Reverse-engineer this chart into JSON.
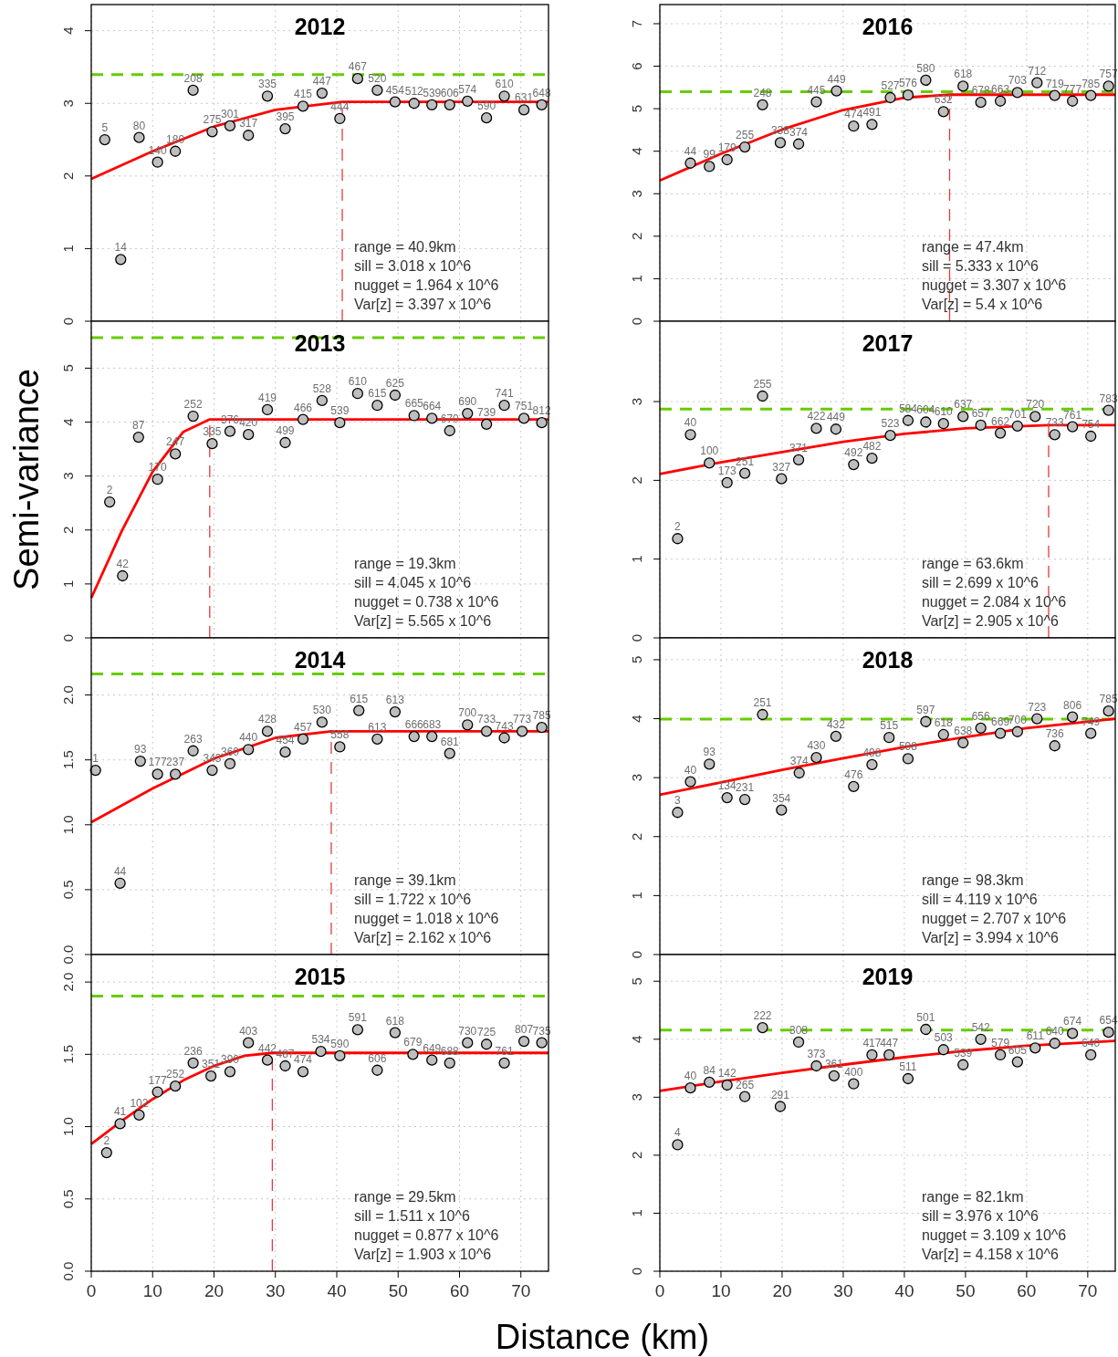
{
  "chart_data": [
    {
      "type": "scatter",
      "title": "2012",
      "xlim": [
        0,
        74.5
      ],
      "xticks": [
        0,
        10,
        20,
        30,
        40,
        50,
        60,
        70
      ],
      "ylim": [
        0,
        4.36
      ],
      "yticks": [
        0,
        1,
        2,
        3,
        4
      ],
      "grid": true,
      "tick_labels": "y",
      "series": [
        {
          "marker": "circle",
          "color": "#bebebe",
          "x": [
            2.2,
            4.8,
            7.8,
            10.8,
            13.7,
            16.6,
            19.7,
            22.6,
            25.6,
            28.7,
            31.6,
            34.5,
            37.6,
            40.5,
            43.4,
            46.6,
            49.5,
            52.6,
            55.5,
            58.4,
            61.3,
            64.4,
            67.3,
            70.5,
            73.4
          ],
          "values": [
            2.5,
            0.85,
            2.53,
            2.19,
            2.34,
            3.18,
            2.61,
            2.69,
            2.56,
            3.1,
            2.65,
            2.96,
            3.14,
            2.79,
            3.34,
            3.18,
            3.02,
            3.0,
            2.98,
            2.98,
            3.03,
            2.8,
            3.1,
            2.91,
            2.98
          ]
        },
        {
          "type": "line",
          "color": "#ff0000",
          "x": [
            0,
            10,
            20,
            30,
            40.9,
            74.5
          ],
          "values": [
            1.96,
            2.34,
            2.68,
            2.91,
            3.02,
            3.02
          ]
        }
      ],
      "ref_lines": [
        {
          "axis": "y",
          "value": 3.397,
          "color": "#66cc00",
          "line_style": "dashed"
        },
        {
          "axis": "x",
          "value": 40.9,
          "color": "#e8383d",
          "line_style": "dashed"
        }
      ],
      "annotations": [
        "range = 40.9km",
        "sill = 3.018 x 10^6",
        "nugget = 1.964 x 10^6",
        "Var[z] = 3.397 x 10^6",
        {
          "text": "5",
          "x": 2.2,
          "y": 2.5
        },
        {
          "text": "14",
          "x": 4.8,
          "y": 0.85
        },
        {
          "text": "80",
          "x": 7.8,
          "y": 2.53
        },
        {
          "text": "140",
          "x": 10.8,
          "y": 2.19
        },
        {
          "text": "180",
          "x": 13.7,
          "y": 2.34
        },
        {
          "text": "208",
          "x": 16.6,
          "y": 3.18
        },
        {
          "text": "275",
          "x": 19.7,
          "y": 2.61
        },
        {
          "text": "301",
          "x": 22.6,
          "y": 2.69
        },
        {
          "text": "317",
          "x": 25.6,
          "y": 2.56
        },
        {
          "text": "335",
          "x": 28.7,
          "y": 3.1
        },
        {
          "text": "395",
          "x": 31.6,
          "y": 2.65
        },
        {
          "text": "415",
          "x": 34.5,
          "y": 2.96
        },
        {
          "text": "447",
          "x": 37.6,
          "y": 3.14
        },
        {
          "text": "444",
          "x": 40.5,
          "y": 2.79
        },
        {
          "text": "467",
          "x": 43.4,
          "y": 3.34
        },
        {
          "text": "520",
          "x": 46.6,
          "y": 3.18
        },
        {
          "text": "454",
          "x": 49.5,
          "y": 3.02
        },
        {
          "text": "512",
          "x": 52.6,
          "y": 3.0
        },
        {
          "text": "539",
          "x": 55.5,
          "y": 2.98
        },
        {
          "text": "606",
          "x": 58.4,
          "y": 2.98
        },
        {
          "text": "574",
          "x": 61.3,
          "y": 3.03
        },
        {
          "text": "590",
          "x": 64.4,
          "y": 2.8
        },
        {
          "text": "610",
          "x": 67.3,
          "y": 3.1
        },
        {
          "text": "631",
          "x": 70.5,
          "y": 2.91
        },
        {
          "text": "648",
          "x": 73.4,
          "y": 2.98
        }
      ]
    },
    {
      "type": "scatter",
      "title": "2013",
      "ylabel": "Semi-variance",
      "xlim": [
        0,
        74.5
      ],
      "xticks": [
        0,
        10,
        20,
        30,
        40,
        50,
        60,
        70
      ],
      "ylim": [
        0,
        5.87
      ],
      "yticks": [
        0,
        1,
        2,
        3,
        4,
        5
      ],
      "grid": true,
      "tick_labels": "y",
      "series": [
        {
          "marker": "circle",
          "color": "#bebebe",
          "x": [
            3.0,
            5.1,
            7.7,
            10.8,
            13.7,
            16.6,
            19.7,
            22.6,
            25.6,
            28.7,
            31.6,
            34.5,
            37.6,
            40.5,
            43.4,
            46.6,
            49.5,
            52.6,
            55.5,
            58.4,
            61.3,
            64.4,
            67.3,
            70.5,
            73.4
          ],
          "values": [
            2.52,
            1.15,
            3.72,
            2.94,
            3.41,
            4.11,
            3.6,
            3.83,
            3.77,
            4.23,
            3.62,
            4.05,
            4.4,
            3.99,
            4.53,
            4.31,
            4.5,
            4.12,
            4.07,
            3.84,
            4.16,
            3.96,
            4.31,
            4.07,
            3.99
          ]
        },
        {
          "type": "line",
          "color": "#ff0000",
          "x": [
            0,
            5,
            10,
            15,
            19.3,
            74.5
          ],
          "values": [
            0.74,
            1.99,
            3.08,
            3.82,
            4.05,
            4.05
          ]
        }
      ],
      "ref_lines": [
        {
          "axis": "y",
          "value": 5.565,
          "color": "#66cc00",
          "line_style": "dashed"
        },
        {
          "axis": "x",
          "value": 19.3,
          "color": "#e8383d",
          "line_style": "dashed"
        }
      ],
      "annotations": [
        "range = 19.3km",
        "sill = 4.045 x 10^6",
        "nugget = 0.738 x 10^6",
        "Var[z] = 5.565 x 10^6",
        {
          "text": "2",
          "x": 3.0,
          "y": 2.52
        },
        {
          "text": "42",
          "x": 5.1,
          "y": 1.15
        },
        {
          "text": "87",
          "x": 7.7,
          "y": 3.72
        },
        {
          "text": "170",
          "x": 10.8,
          "y": 2.94
        },
        {
          "text": "247",
          "x": 13.7,
          "y": 3.41
        },
        {
          "text": "252",
          "x": 16.6,
          "y": 4.11
        },
        {
          "text": "335",
          "x": 19.7,
          "y": 3.6
        },
        {
          "text": "376",
          "x": 22.6,
          "y": 3.83
        },
        {
          "text": "420",
          "x": 25.6,
          "y": 3.77
        },
        {
          "text": "419",
          "x": 28.7,
          "y": 4.23
        },
        {
          "text": "499",
          "x": 31.6,
          "y": 3.62
        },
        {
          "text": "466",
          "x": 34.5,
          "y": 4.05
        },
        {
          "text": "528",
          "x": 37.6,
          "y": 4.4
        },
        {
          "text": "539",
          "x": 40.5,
          "y": 3.99
        },
        {
          "text": "610",
          "x": 43.4,
          "y": 4.53
        },
        {
          "text": "615",
          "x": 46.6,
          "y": 4.31
        },
        {
          "text": "625",
          "x": 49.5,
          "y": 4.5
        },
        {
          "text": "665",
          "x": 52.6,
          "y": 4.12
        },
        {
          "text": "664",
          "x": 55.5,
          "y": 4.07
        },
        {
          "text": "670",
          "x": 58.4,
          "y": 3.84
        },
        {
          "text": "690",
          "x": 61.3,
          "y": 4.16
        },
        {
          "text": "739",
          "x": 64.4,
          "y": 3.96
        },
        {
          "text": "741",
          "x": 67.3,
          "y": 4.31
        },
        {
          "text": "751",
          "x": 70.5,
          "y": 4.07
        },
        {
          "text": "812",
          "x": 73.4,
          "y": 3.99
        }
      ]
    },
    {
      "type": "scatter",
      "title": "2014",
      "xlim": [
        0,
        74.5
      ],
      "xticks": [
        0,
        10,
        20,
        30,
        40,
        50,
        60,
        70
      ],
      "ylim": [
        0,
        2.44
      ],
      "yticks": [
        {
          "value": 0,
          "label": "0.0"
        },
        {
          "value": 0.5,
          "label": "0.5"
        },
        {
          "value": 1,
          "label": "1.0"
        },
        {
          "value": 1.5,
          "label": "1.5"
        },
        {
          "value": 2,
          "label": "2.0"
        }
      ],
      "grid": true,
      "tick_labels": "y",
      "series": [
        {
          "marker": "circle",
          "color": "#bebebe",
          "x": [
            0.7,
            4.7,
            8.0,
            10.8,
            13.7,
            16.6,
            19.7,
            22.6,
            25.6,
            28.7,
            31.6,
            34.5,
            37.6,
            40.5,
            43.6,
            46.6,
            49.5,
            52.6,
            55.5,
            58.4,
            61.3,
            64.4,
            67.3,
            70.2,
            73.4
          ],
          "values": [
            1.42,
            0.55,
            1.49,
            1.39,
            1.39,
            1.57,
            1.42,
            1.47,
            1.58,
            1.72,
            1.56,
            1.66,
            1.79,
            1.6,
            1.88,
            1.66,
            1.87,
            1.68,
            1.68,
            1.55,
            1.77,
            1.72,
            1.67,
            1.72,
            1.75
          ]
        },
        {
          "type": "line",
          "color": "#ff0000",
          "x": [
            0,
            10,
            20,
            30,
            39.1,
            74.5
          ],
          "values": [
            1.02,
            1.28,
            1.51,
            1.67,
            1.72,
            1.72
          ]
        }
      ],
      "ref_lines": [
        {
          "axis": "y",
          "value": 2.162,
          "color": "#66cc00",
          "line_style": "dashed"
        },
        {
          "axis": "x",
          "value": 39.1,
          "color": "#e8383d",
          "line_style": "dashed"
        }
      ],
      "annotations": [
        "range = 39.1km",
        "sill = 1.722 x 10^6",
        "nugget = 1.018 x 10^6",
        "Var[z] = 2.162 x 10^6",
        {
          "text": "1",
          "x": 0.7,
          "y": 1.42
        },
        {
          "text": "44",
          "x": 4.7,
          "y": 0.55
        },
        {
          "text": "93",
          "x": 8.0,
          "y": 1.49
        },
        {
          "text": "177",
          "x": 10.8,
          "y": 1.39
        },
        {
          "text": "237",
          "x": 13.7,
          "y": 1.39
        },
        {
          "text": "263",
          "x": 16.6,
          "y": 1.57
        },
        {
          "text": "343",
          "x": 19.7,
          "y": 1.42
        },
        {
          "text": "360",
          "x": 22.6,
          "y": 1.47
        },
        {
          "text": "440",
          "x": 25.6,
          "y": 1.58
        },
        {
          "text": "428",
          "x": 28.7,
          "y": 1.72
        },
        {
          "text": "454",
          "x": 31.6,
          "y": 1.56
        },
        {
          "text": "457",
          "x": 34.5,
          "y": 1.66
        },
        {
          "text": "530",
          "x": 37.6,
          "y": 1.79
        },
        {
          "text": "558",
          "x": 40.5,
          "y": 1.6
        },
        {
          "text": "615",
          "x": 43.6,
          "y": 1.88
        },
        {
          "text": "613",
          "x": 46.6,
          "y": 1.66
        },
        {
          "text": "613",
          "x": 49.5,
          "y": 1.87
        },
        {
          "text": "666",
          "x": 52.6,
          "y": 1.68
        },
        {
          "text": "683",
          "x": 55.5,
          "y": 1.68
        },
        {
          "text": "681",
          "x": 58.4,
          "y": 1.55
        },
        {
          "text": "700",
          "x": 61.3,
          "y": 1.77
        },
        {
          "text": "733",
          "x": 64.4,
          "y": 1.72
        },
        {
          "text": "743",
          "x": 67.3,
          "y": 1.67
        },
        {
          "text": "773",
          "x": 70.2,
          "y": 1.72
        },
        {
          "text": "785",
          "x": 73.4,
          "y": 1.75
        }
      ]
    },
    {
      "type": "scatter",
      "title": "2015",
      "xlabel": "Distance (km)",
      "xlim": [
        0,
        74.5
      ],
      "xticks": [
        0,
        10,
        20,
        30,
        40,
        50,
        60,
        70
      ],
      "ylim": [
        0,
        2.19
      ],
      "yticks": [
        {
          "value": 0,
          "label": "0.0"
        },
        {
          "value": 0.5,
          "label": "0.5"
        },
        {
          "value": 1,
          "label": "1.0"
        },
        {
          "value": 1.5,
          "label": "1.5"
        },
        {
          "value": 2,
          "label": "2.0"
        }
      ],
      "grid": true,
      "series": [
        {
          "marker": "circle",
          "color": "#bebebe",
          "x": [
            2.5,
            4.7,
            7.8,
            10.8,
            13.7,
            16.6,
            19.5,
            22.6,
            25.6,
            28.7,
            31.6,
            34.5,
            37.4,
            40.5,
            43.4,
            46.6,
            49.5,
            52.4,
            55.5,
            58.4,
            61.3,
            64.4,
            67.3,
            70.5,
            73.4
          ],
          "values": [
            0.82,
            1.02,
            1.08,
            1.24,
            1.28,
            1.44,
            1.35,
            1.38,
            1.58,
            1.46,
            1.42,
            1.38,
            1.52,
            1.49,
            1.67,
            1.39,
            1.65,
            1.5,
            1.46,
            1.44,
            1.58,
            1.57,
            1.44,
            1.59,
            1.58
          ]
        },
        {
          "type": "line",
          "color": "#ff0000",
          "x": [
            0,
            5,
            10,
            15,
            20,
            25,
            29.5,
            74.5
          ],
          "values": [
            0.88,
            1.04,
            1.19,
            1.32,
            1.42,
            1.49,
            1.51,
            1.51
          ]
        }
      ],
      "ref_lines": [
        {
          "axis": "y",
          "value": 1.903,
          "color": "#66cc00",
          "line_style": "dashed"
        },
        {
          "axis": "x",
          "value": 29.5,
          "color": "#e8383d",
          "line_style": "dashed"
        }
      ],
      "annotations": [
        "range = 29.5km",
        "sill = 1.511 x 10^6",
        "nugget = 0.877 x 10^6",
        "Var[z] = 1.903 x 10^6",
        {
          "text": "2",
          "x": 2.5,
          "y": 0.82
        },
        {
          "text": "41",
          "x": 4.7,
          "y": 1.02
        },
        {
          "text": "102",
          "x": 7.8,
          "y": 1.08
        },
        {
          "text": "177",
          "x": 10.8,
          "y": 1.24
        },
        {
          "text": "252",
          "x": 13.7,
          "y": 1.28
        },
        {
          "text": "236",
          "x": 16.6,
          "y": 1.44
        },
        {
          "text": "351",
          "x": 19.5,
          "y": 1.35
        },
        {
          "text": "390",
          "x": 22.6,
          "y": 1.38
        },
        {
          "text": "403",
          "x": 25.6,
          "y": 1.58
        },
        {
          "text": "442",
          "x": 28.7,
          "y": 1.46
        },
        {
          "text": "487",
          "x": 31.6,
          "y": 1.42
        },
        {
          "text": "474",
          "x": 34.5,
          "y": 1.38
        },
        {
          "text": "534",
          "x": 37.4,
          "y": 1.52
        },
        {
          "text": "590",
          "x": 40.5,
          "y": 1.49
        },
        {
          "text": "591",
          "x": 43.4,
          "y": 1.67
        },
        {
          "text": "606",
          "x": 46.6,
          "y": 1.39
        },
        {
          "text": "618",
          "x": 49.5,
          "y": 1.65
        },
        {
          "text": "679",
          "x": 52.4,
          "y": 1.5
        },
        {
          "text": "649",
          "x": 55.5,
          "y": 1.46
        },
        {
          "text": "688",
          "x": 58.4,
          "y": 1.44
        },
        {
          "text": "730",
          "x": 61.3,
          "y": 1.58
        },
        {
          "text": "725",
          "x": 64.4,
          "y": 1.57
        },
        {
          "text": "761",
          "x": 67.3,
          "y": 1.44
        },
        {
          "text": "807",
          "x": 70.5,
          "y": 1.59
        },
        {
          "text": "735",
          "x": 73.4,
          "y": 1.58
        }
      ]
    },
    {
      "type": "scatter",
      "title": "2016",
      "xlim": [
        0,
        74.5
      ],
      "xticks": [
        0,
        10,
        20,
        30,
        40,
        50,
        60,
        70
      ],
      "ylim": [
        0,
        7.45
      ],
      "yticks": [
        0,
        1,
        2,
        3,
        4,
        5,
        6,
        7
      ],
      "grid": true,
      "tick_labels": "y",
      "series": [
        {
          "marker": "circle",
          "color": "#bebebe",
          "x": [
            5.0,
            8.1,
            11.0,
            13.9,
            16.8,
            19.7,
            22.7,
            25.6,
            28.9,
            31.7,
            34.7,
            37.7,
            40.6,
            43.5,
            46.4,
            49.6,
            52.5,
            55.7,
            58.5,
            61.7,
            64.6,
            67.5,
            70.5,
            73.4
          ],
          "values": [
            3.72,
            3.64,
            3.8,
            4.1,
            5.09,
            4.2,
            4.17,
            5.16,
            5.42,
            4.59,
            4.63,
            5.26,
            5.32,
            5.67,
            4.93,
            5.53,
            5.15,
            5.18,
            5.38,
            5.61,
            5.31,
            5.18,
            5.31,
            5.53
          ]
        },
        {
          "type": "line",
          "color": "#ff0000",
          "x": [
            0,
            10,
            20,
            30,
            40,
            47.4,
            74.5
          ],
          "values": [
            3.31,
            3.94,
            4.51,
            4.97,
            5.26,
            5.33,
            5.33
          ]
        }
      ],
      "ref_lines": [
        {
          "axis": "y",
          "value": 5.4,
          "color": "#66cc00",
          "line_style": "dashed"
        },
        {
          "axis": "x",
          "value": 47.4,
          "color": "#e8383d",
          "line_style": "dashed"
        }
      ],
      "annotations": [
        "range = 47.4km",
        "sill = 5.333 x 10^6",
        "nugget = 3.307 x 10^6",
        "Var[z] = 5.4 x 10^6",
        {
          "text": "44",
          "x": 5.0,
          "y": 3.72
        },
        {
          "text": "99",
          "x": 8.1,
          "y": 3.64
        },
        {
          "text": "179",
          "x": 11.0,
          "y": 3.8
        },
        {
          "text": "255",
          "x": 13.9,
          "y": 4.1
        },
        {
          "text": "248",
          "x": 16.8,
          "y": 5.09
        },
        {
          "text": "338",
          "x": 19.7,
          "y": 4.2
        },
        {
          "text": "374",
          "x": 22.7,
          "y": 4.17
        },
        {
          "text": "445",
          "x": 25.6,
          "y": 5.16
        },
        {
          "text": "449",
          "x": 28.9,
          "y": 5.42
        },
        {
          "text": "474",
          "x": 31.7,
          "y": 4.59
        },
        {
          "text": "491",
          "x": 34.7,
          "y": 4.63
        },
        {
          "text": "527",
          "x": 37.7,
          "y": 5.26
        },
        {
          "text": "576",
          "x": 40.6,
          "y": 5.32
        },
        {
          "text": "580",
          "x": 43.5,
          "y": 5.67
        },
        {
          "text": "632",
          "x": 46.4,
          "y": 4.93
        },
        {
          "text": "618",
          "x": 49.6,
          "y": 5.53
        },
        {
          "text": "678",
          "x": 52.5,
          "y": 5.15
        },
        {
          "text": "663",
          "x": 55.7,
          "y": 5.18
        },
        {
          "text": "703",
          "x": 58.5,
          "y": 5.38
        },
        {
          "text": "712",
          "x": 61.7,
          "y": 5.61
        },
        {
          "text": "719",
          "x": 64.6,
          "y": 5.31
        },
        {
          "text": "777",
          "x": 67.5,
          "y": 5.18
        },
        {
          "text": "785",
          "x": 70.5,
          "y": 5.31
        },
        {
          "text": "757",
          "x": 73.4,
          "y": 5.53
        }
      ]
    },
    {
      "type": "scatter",
      "title": "2017",
      "xlim": [
        0,
        74.5
      ],
      "xticks": [
        0,
        10,
        20,
        30,
        40,
        50,
        60,
        70
      ],
      "ylim": [
        0,
        4.02
      ],
      "yticks": [
        0,
        1,
        2,
        3
      ],
      "grid": true,
      "tick_labels": "y",
      "series": [
        {
          "marker": "circle",
          "color": "#bebebe",
          "x": [
            2.9,
            5.0,
            8.1,
            11.0,
            13.9,
            16.8,
            19.9,
            22.7,
            25.6,
            28.8,
            31.7,
            34.7,
            37.7,
            40.6,
            43.5,
            46.4,
            49.6,
            52.5,
            55.7,
            58.5,
            61.4,
            64.6,
            67.5,
            70.5,
            73.4
          ],
          "values": [
            1.26,
            2.58,
            2.22,
            1.97,
            2.09,
            3.07,
            2.02,
            2.26,
            2.66,
            2.65,
            2.2,
            2.28,
            2.57,
            2.76,
            2.74,
            2.72,
            2.81,
            2.7,
            2.6,
            2.69,
            2.81,
            2.58,
            2.68,
            2.56,
            2.89
          ]
        },
        {
          "type": "line",
          "color": "#ff0000",
          "x": [
            0,
            10,
            20,
            30,
            40,
            50,
            63.6,
            74.5
          ],
          "values": [
            2.08,
            2.23,
            2.36,
            2.49,
            2.59,
            2.66,
            2.7,
            2.7
          ]
        }
      ],
      "ref_lines": [
        {
          "axis": "y",
          "value": 2.905,
          "color": "#66cc00",
          "line_style": "dashed"
        },
        {
          "axis": "x",
          "value": 63.6,
          "color": "#e8383d",
          "line_style": "dashed"
        }
      ],
      "annotations": [
        "range = 63.6km",
        "sill = 2.699 x 10^6",
        "nugget = 2.084 x 10^6",
        "Var[z] = 2.905 x 10^6",
        {
          "text": "2",
          "x": 2.9,
          "y": 1.26
        },
        {
          "text": "40",
          "x": 5.0,
          "y": 2.58
        },
        {
          "text": "100",
          "x": 8.1,
          "y": 2.22
        },
        {
          "text": "173",
          "x": 11.0,
          "y": 1.97
        },
        {
          "text": "251",
          "x": 13.9,
          "y": 2.09
        },
        {
          "text": "255",
          "x": 16.8,
          "y": 3.07
        },
        {
          "text": "327",
          "x": 19.9,
          "y": 2.02
        },
        {
          "text": "371",
          "x": 22.7,
          "y": 2.26
        },
        {
          "text": "422",
          "x": 25.6,
          "y": 2.66
        },
        {
          "text": "449",
          "x": 28.8,
          "y": 2.65
        },
        {
          "text": "492",
          "x": 31.7,
          "y": 2.2
        },
        {
          "text": "482",
          "x": 34.7,
          "y": 2.28
        },
        {
          "text": "523",
          "x": 37.7,
          "y": 2.57
        },
        {
          "text": "584",
          "x": 40.6,
          "y": 2.76
        },
        {
          "text": "604",
          "x": 43.5,
          "y": 2.74
        },
        {
          "text": "610",
          "x": 46.4,
          "y": 2.72
        },
        {
          "text": "637",
          "x": 49.6,
          "y": 2.81
        },
        {
          "text": "657",
          "x": 52.5,
          "y": 2.7
        },
        {
          "text": "662",
          "x": 55.7,
          "y": 2.6
        },
        {
          "text": "701",
          "x": 58.5,
          "y": 2.69
        },
        {
          "text": "720",
          "x": 61.4,
          "y": 2.81
        },
        {
          "text": "733",
          "x": 64.6,
          "y": 2.58
        },
        {
          "text": "761",
          "x": 67.5,
          "y": 2.68
        },
        {
          "text": "754",
          "x": 70.5,
          "y": 2.56
        },
        {
          "text": "783",
          "x": 73.4,
          "y": 2.89
        }
      ]
    },
    {
      "type": "scatter",
      "title": "2018",
      "xlim": [
        0,
        74.5
      ],
      "xticks": [
        0,
        10,
        20,
        30,
        40,
        50,
        60,
        70
      ],
      "ylim": [
        0,
        5.37
      ],
      "yticks": [
        0,
        1,
        2,
        3,
        4,
        5
      ],
      "grid": true,
      "tick_labels": "y",
      "series": [
        {
          "marker": "circle",
          "color": "#bebebe",
          "x": [
            2.9,
            5.0,
            8.1,
            11.0,
            13.9,
            16.8,
            19.9,
            22.8,
            25.6,
            28.8,
            31.7,
            34.7,
            37.5,
            40.6,
            43.5,
            46.4,
            49.6,
            52.5,
            55.7,
            58.5,
            61.7,
            64.6,
            67.5,
            70.5,
            73.4
          ],
          "values": [
            2.41,
            2.93,
            3.23,
            2.66,
            2.63,
            4.07,
            2.45,
            3.08,
            3.34,
            3.7,
            2.85,
            3.22,
            3.68,
            3.32,
            3.95,
            3.73,
            3.59,
            3.84,
            3.75,
            3.78,
            4.0,
            3.54,
            4.03,
            3.75,
            4.13
          ]
        },
        {
          "type": "line",
          "color": "#ff0000",
          "x": [
            0,
            10,
            20,
            30,
            40,
            50,
            60,
            74.5
          ],
          "values": [
            2.71,
            2.92,
            3.13,
            3.33,
            3.52,
            3.69,
            3.84,
            4.0
          ]
        }
      ],
      "ref_lines": [
        {
          "axis": "y",
          "value": 3.994,
          "color": "#66cc00",
          "line_style": "dashed"
        }
      ],
      "annotations": [
        "range = 98.3km",
        "sill = 4.119 x 10^6",
        "nugget = 2.707 x 10^6",
        "Var[z] = 3.994 x 10^6",
        {
          "text": "3",
          "x": 2.9,
          "y": 2.41
        },
        {
          "text": "40",
          "x": 5.0,
          "y": 2.93
        },
        {
          "text": "93",
          "x": 8.1,
          "y": 3.23
        },
        {
          "text": "134",
          "x": 11.0,
          "y": 2.66
        },
        {
          "text": "231",
          "x": 13.9,
          "y": 2.63
        },
        {
          "text": "251",
          "x": 16.8,
          "y": 4.07
        },
        {
          "text": "354",
          "x": 19.9,
          "y": 2.45
        },
        {
          "text": "374",
          "x": 22.8,
          "y": 3.08
        },
        {
          "text": "430",
          "x": 25.6,
          "y": 3.34
        },
        {
          "text": "432",
          "x": 28.8,
          "y": 3.7
        },
        {
          "text": "476",
          "x": 31.7,
          "y": 2.85
        },
        {
          "text": "498",
          "x": 34.7,
          "y": 3.22
        },
        {
          "text": "515",
          "x": 37.5,
          "y": 3.68
        },
        {
          "text": "598",
          "x": 40.6,
          "y": 3.32
        },
        {
          "text": "597",
          "x": 43.5,
          "y": 3.95
        },
        {
          "text": "618",
          "x": 46.4,
          "y": 3.73
        },
        {
          "text": "638",
          "x": 49.6,
          "y": 3.59
        },
        {
          "text": "656",
          "x": 52.5,
          "y": 3.84
        },
        {
          "text": "669",
          "x": 55.7,
          "y": 3.75
        },
        {
          "text": "700",
          "x": 58.5,
          "y": 3.78
        },
        {
          "text": "723",
          "x": 61.7,
          "y": 4.0
        },
        {
          "text": "736",
          "x": 64.6,
          "y": 3.54
        },
        {
          "text": "806",
          "x": 67.5,
          "y": 4.03
        },
        {
          "text": "749",
          "x": 70.5,
          "y": 3.75
        },
        {
          "text": "785",
          "x": 73.4,
          "y": 4.13
        }
      ]
    },
    {
      "type": "scatter",
      "title": "2019",
      "xlim": [
        0,
        74.5
      ],
      "xticks": [
        0,
        10,
        20,
        30,
        40,
        50,
        60,
        70
      ],
      "ylim": [
        0,
        5.46
      ],
      "yticks": [
        0,
        1,
        2,
        3,
        4,
        5
      ],
      "grid": true,
      "series": [
        {
          "marker": "circle",
          "color": "#bebebe",
          "x": [
            2.9,
            5.0,
            8.1,
            11.0,
            13.9,
            16.8,
            19.7,
            22.7,
            25.6,
            28.5,
            31.7,
            34.7,
            37.5,
            40.6,
            43.5,
            46.4,
            49.6,
            52.5,
            55.7,
            58.5,
            61.4,
            64.6,
            67.5,
            70.5,
            73.4
          ],
          "values": [
            2.18,
            3.16,
            3.26,
            3.21,
            3.01,
            4.2,
            2.84,
            3.95,
            3.54,
            3.37,
            3.23,
            3.73,
            3.73,
            3.32,
            4.17,
            3.82,
            3.56,
            4.0,
            3.73,
            3.61,
            3.85,
            3.93,
            4.1,
            3.73,
            4.12
          ]
        },
        {
          "type": "line",
          "color": "#ff0000",
          "x": [
            0,
            10,
            20,
            30,
            40,
            50,
            60,
            74.5
          ],
          "values": [
            3.11,
            3.27,
            3.42,
            3.56,
            3.69,
            3.8,
            3.89,
            3.97
          ]
        }
      ],
      "ref_lines": [
        {
          "axis": "y",
          "value": 4.158,
          "color": "#66cc00",
          "line_style": "dashed"
        }
      ],
      "annotations": [
        "range = 82.1km",
        "sill = 3.976 x 10^6",
        "nugget = 3.109 x 10^6",
        "Var[z] = 4.158 x 10^6",
        {
          "text": "4",
          "x": 2.9,
          "y": 2.18
        },
        {
          "text": "40",
          "x": 5.0,
          "y": 3.16
        },
        {
          "text": "84",
          "x": 8.1,
          "y": 3.26
        },
        {
          "text": "142",
          "x": 11.0,
          "y": 3.21
        },
        {
          "text": "265",
          "x": 13.9,
          "y": 3.01
        },
        {
          "text": "222",
          "x": 16.8,
          "y": 4.2
        },
        {
          "text": "291",
          "x": 19.7,
          "y": 2.84
        },
        {
          "text": "308",
          "x": 22.7,
          "y": 3.95
        },
        {
          "text": "373",
          "x": 25.6,
          "y": 3.54
        },
        {
          "text": "361",
          "x": 28.5,
          "y": 3.37
        },
        {
          "text": "400",
          "x": 31.7,
          "y": 3.23
        },
        {
          "text": "417",
          "x": 34.7,
          "y": 3.73
        },
        {
          "text": "447",
          "x": 37.5,
          "y": 3.73
        },
        {
          "text": "511",
          "x": 40.6,
          "y": 3.32
        },
        {
          "text": "501",
          "x": 43.5,
          "y": 4.17
        },
        {
          "text": "503",
          "x": 46.4,
          "y": 3.82
        },
        {
          "text": "539",
          "x": 49.6,
          "y": 3.56
        },
        {
          "text": "542",
          "x": 52.5,
          "y": 4.0
        },
        {
          "text": "579",
          "x": 55.7,
          "y": 3.73
        },
        {
          "text": "605",
          "x": 58.5,
          "y": 3.61
        },
        {
          "text": "611",
          "x": 61.4,
          "y": 3.85
        },
        {
          "text": "640",
          "x": 64.6,
          "y": 3.93
        },
        {
          "text": "674",
          "x": 67.5,
          "y": 4.1
        },
        {
          "text": "640",
          "x": 70.5,
          "y": 3.73
        },
        {
          "text": "654",
          "x": 73.4,
          "y": 4.12
        }
      ]
    }
  ]
}
